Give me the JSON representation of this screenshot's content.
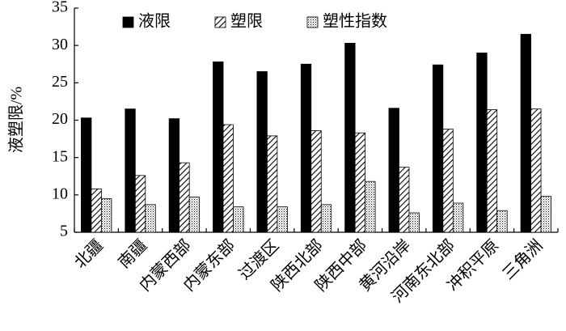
{
  "chart_data": {
    "type": "bar",
    "y_label": "液塑限/%",
    "categories": [
      "北疆",
      "南疆",
      "内蒙西部",
      "内蒙东部",
      "过渡区",
      "陕西北部",
      "陕西中部",
      "黄河沿岸",
      "河南东北部",
      "冲积平原",
      "三角洲"
    ],
    "series": [
      {
        "name": "液限",
        "color": "#000000",
        "pattern": "solid",
        "values": [
          20.3,
          21.5,
          20.2,
          27.8,
          26.5,
          27.5,
          30.3,
          21.6,
          27.4,
          29.0,
          31.5
        ]
      },
      {
        "name": "塑限",
        "color": "#000000",
        "pattern": "hatch",
        "values": [
          10.8,
          12.6,
          14.3,
          19.4,
          17.9,
          18.6,
          18.3,
          13.7,
          18.8,
          21.4,
          21.5
        ]
      },
      {
        "name": "塑性指数",
        "color": "#000000",
        "pattern": "dots",
        "values": [
          9.5,
          8.7,
          9.7,
          8.4,
          8.4,
          8.7,
          11.8,
          7.6,
          8.9,
          7.9,
          9.8
        ]
      }
    ],
    "ylim": [
      5,
      35
    ],
    "yticks": [
      5,
      10,
      15,
      20,
      25,
      30,
      35
    ],
    "grid": false,
    "legend": "top"
  }
}
